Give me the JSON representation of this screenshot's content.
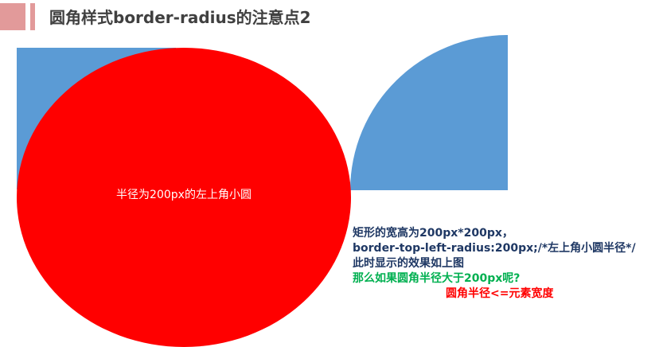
{
  "header": {
    "title": "圆角样式border-radius的注意点2",
    "accent_color": "#e29a9a"
  },
  "illustration": {
    "square_color": "#5b9bd5",
    "ellipse_color": "#ff0000",
    "ellipse_label": "半径为200px的左上角小圆"
  },
  "notes": {
    "line1": "矩形的宽高为200px*200px，",
    "line2": "border-top-left-radius:200px;/*左上角小圆半径*/",
    "line3": "此时显示的效果如上图",
    "question": "那么如果圆角半径大于200px呢?",
    "conclusion": "圆角半径<=元素宽度"
  }
}
